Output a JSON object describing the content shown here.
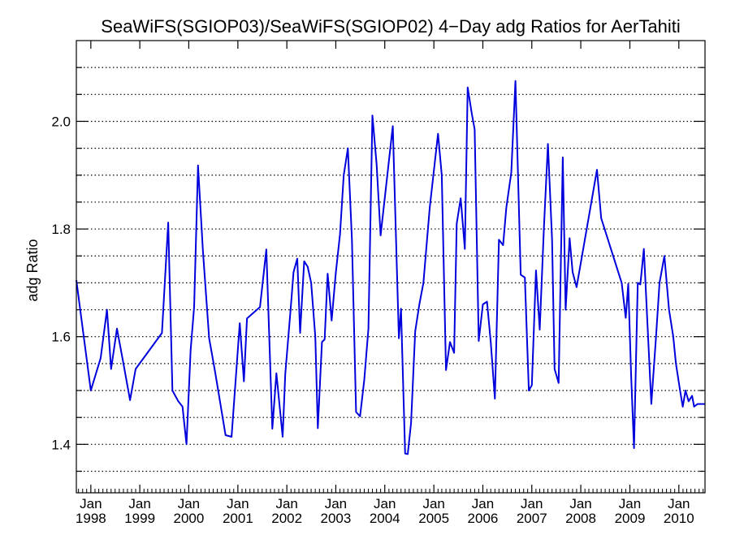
{
  "chart_data": {
    "type": "line",
    "title": "SeaWiFS(SGIOP03)/SeaWiFS(SGIOP02) 4−Day adg Ratios for AerTahiti",
    "xlabel": "",
    "ylabel": "adg Ratio",
    "xlim": [
      "1997-09-15",
      "2010-07-15"
    ],
    "ylim": [
      1.31,
      2.15
    ],
    "y_ticks": [
      1.4,
      1.6,
      1.8,
      2.0
    ],
    "y_tick_labels": [
      "1.4",
      "1.6",
      "1.8",
      "2.0"
    ],
    "x_ticks": [
      "1998-01-01",
      "1999-01-01",
      "2000-01-01",
      "2001-01-01",
      "2002-01-01",
      "2003-01-01",
      "2004-01-01",
      "2005-01-01",
      "2006-01-01",
      "2007-01-01",
      "2008-01-01",
      "2009-01-01",
      "2010-01-01"
    ],
    "x_tick_labels": [
      {
        "month": "Jan",
        "year": "1998"
      },
      {
        "month": "Jan",
        "year": "1999"
      },
      {
        "month": "Jan",
        "year": "2000"
      },
      {
        "month": "Jan",
        "year": "2001"
      },
      {
        "month": "Jan",
        "year": "2002"
      },
      {
        "month": "Jan",
        "year": "2003"
      },
      {
        "month": "Jan",
        "year": "2004"
      },
      {
        "month": "Jan",
        "year": "2005"
      },
      {
        "month": "Jan",
        "year": "2006"
      },
      {
        "month": "Jan",
        "year": "2007"
      },
      {
        "month": "Jan",
        "year": "2008"
      },
      {
        "month": "Jan",
        "year": "2009"
      },
      {
        "month": "Jan",
        "year": "2010"
      }
    ],
    "grid": "horizontal dotted",
    "series": [
      {
        "color": "#0000dd",
        "x": [
          "1997-09-15",
          "1998-01-01",
          "1998-03-15",
          "1998-05-01",
          "1998-06-01",
          "1998-07-15",
          "1998-09-01",
          "1998-10-20",
          "1998-12-01",
          "1999-06-15",
          "1999-08-01",
          "1999-09-01",
          "1999-10-15",
          "1999-11-15",
          "1999-12-15",
          "2000-01-15",
          "2000-02-10",
          "2000-03-10",
          "2000-04-15",
          "2000-06-01",
          "2000-07-15",
          "2000-10-01",
          "2000-11-15",
          "2001-01-15",
          "2001-02-15",
          "2001-03-10",
          "2001-06-15",
          "2001-08-01",
          "2001-09-15",
          "2001-10-15",
          "2001-12-01",
          "2001-12-20",
          "2002-02-01",
          "2002-02-20",
          "2002-03-20",
          "2002-04-10",
          "2002-05-10",
          "2002-06-05",
          "2002-07-01",
          "2002-08-01",
          "2002-08-20",
          "2002-09-20",
          "2002-10-10",
          "2002-11-01",
          "2002-12-01",
          "2003-01-01",
          "2003-02-01",
          "2003-03-01",
          "2003-04-01",
          "2003-05-01",
          "2003-06-01",
          "2003-07-01",
          "2003-08-01",
          "2003-09-01",
          "2003-10-01",
          "2003-11-01",
          "2003-12-01",
          "2004-03-01",
          "2004-04-15",
          "2004-05-01",
          "2004-06-01",
          "2004-06-20",
          "2004-07-15",
          "2004-08-15",
          "2004-09-15",
          "2004-10-15",
          "2004-12-01",
          "2005-02-01",
          "2005-03-01",
          "2005-04-01",
          "2005-05-01",
          "2005-06-01",
          "2005-06-20",
          "2005-07-20",
          "2005-08-20",
          "2005-09-10",
          "2005-10-10",
          "2005-11-01",
          "2005-12-01",
          "2006-01-01",
          "2006-02-01",
          "2006-03-01",
          "2006-04-01",
          "2006-05-01",
          "2006-06-01",
          "2006-06-25",
          "2006-08-01",
          "2006-09-01",
          "2006-10-10",
          "2006-11-10",
          "2006-12-10",
          "2007-01-01",
          "2007-02-01",
          "2007-03-01",
          "2007-04-01",
          "2007-05-01",
          "2007-06-01",
          "2007-06-20",
          "2007-07-20",
          "2007-08-20",
          "2007-09-10",
          "2007-10-10",
          "2007-11-01",
          "2007-12-01",
          "2008-05-01",
          "2008-06-01",
          "2008-11-01",
          "2008-12-01",
          "2008-12-20",
          "2009-01-10",
          "2009-02-01",
          "2009-03-01",
          "2009-03-20",
          "2009-04-15",
          "2009-06-10",
          "2009-07-15",
          "2009-08-10",
          "2009-09-15",
          "2009-10-20",
          "2009-11-20",
          "2009-12-10",
          "2010-01-10",
          "2010-01-30",
          "2010-02-20",
          "2010-03-15",
          "2010-04-10",
          "2010-04-25",
          "2010-05-20",
          "2010-06-10",
          "2010-07-15"
        ],
        "y": [
          1.705,
          1.5,
          1.56,
          1.65,
          1.54,
          1.615,
          1.55,
          1.482,
          1.54,
          1.607,
          1.812,
          1.5,
          1.48,
          1.47,
          1.4,
          1.575,
          1.655,
          1.918,
          1.76,
          1.597,
          1.535,
          1.417,
          1.414,
          1.625,
          1.517,
          1.634,
          1.655,
          1.762,
          1.429,
          1.532,
          1.414,
          1.53,
          1.66,
          1.72,
          1.745,
          1.607,
          1.74,
          1.73,
          1.7,
          1.6,
          1.43,
          1.59,
          1.595,
          1.717,
          1.63,
          1.718,
          1.79,
          1.9,
          1.95,
          1.78,
          1.46,
          1.452,
          1.52,
          1.615,
          2.011,
          1.92,
          1.788,
          1.991,
          1.597,
          1.652,
          1.383,
          1.382,
          1.44,
          1.61,
          1.66,
          1.7,
          1.84,
          1.977,
          1.9,
          1.538,
          1.59,
          1.57,
          1.81,
          1.857,
          1.763,
          2.063,
          2.015,
          1.985,
          1.592,
          1.66,
          1.665,
          1.59,
          1.485,
          1.78,
          1.77,
          1.84,
          1.905,
          2.075,
          1.715,
          1.71,
          1.5,
          1.51,
          1.723,
          1.613,
          1.8,
          1.958,
          1.78,
          1.54,
          1.514,
          1.933,
          1.65,
          1.783,
          1.72,
          1.692,
          1.91,
          1.82,
          1.7,
          1.635,
          1.698,
          1.53,
          1.393,
          1.7,
          1.697,
          1.763,
          1.475,
          1.6,
          1.7,
          1.75,
          1.65,
          1.6,
          1.55,
          1.5,
          1.47,
          1.5,
          1.48,
          1.49,
          1.47,
          1.475,
          1.475,
          1.475
        ]
      }
    ]
  }
}
